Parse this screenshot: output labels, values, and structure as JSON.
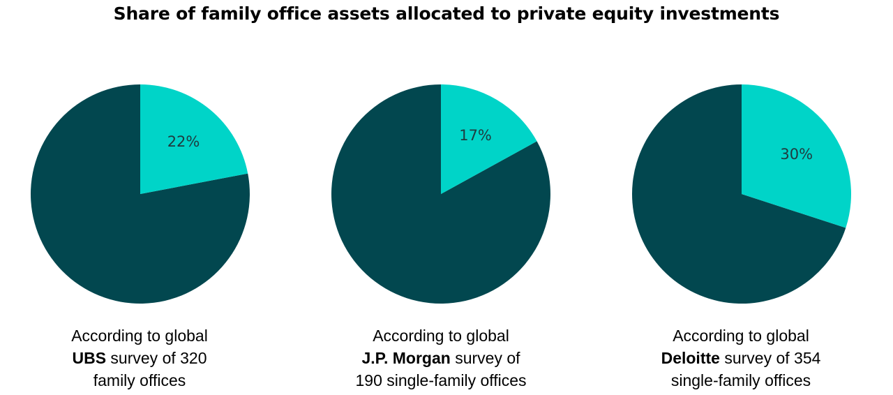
{
  "chart_data": {
    "type": "pie",
    "title": "Share of family office assets allocated to private equity investments",
    "colors": {
      "private_equity": "#00D4C8",
      "other": "#02474F"
    },
    "pies": [
      {
        "value": 22,
        "label": "22%",
        "caption": {
          "line1": "According to global",
          "source": "UBS",
          "line2_rest": " survey of 320",
          "line3": "family offices"
        }
      },
      {
        "value": 17,
        "label": "17%",
        "caption": {
          "line1": "According to global",
          "source": "J.P. Morgan",
          "line2_rest": " survey of",
          "line3": "190 single-family offices"
        }
      },
      {
        "value": 30,
        "label": "30%",
        "caption": {
          "line1": "According to global",
          "source": "Deloitte",
          "line2_rest": " survey of 354",
          "line3": "single-family offices"
        }
      }
    ]
  }
}
